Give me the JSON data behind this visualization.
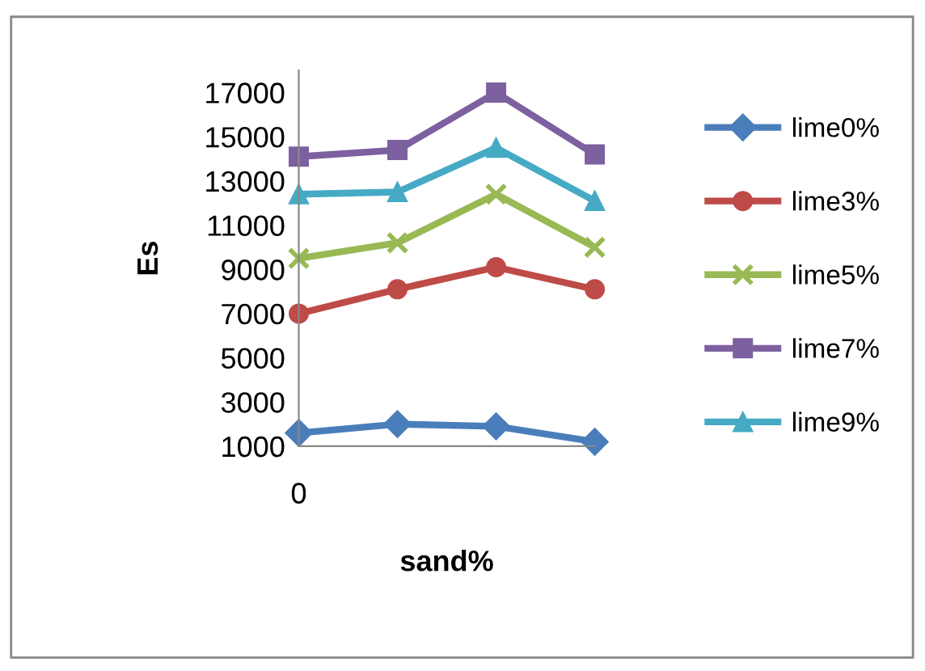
{
  "chart_data": {
    "type": "line",
    "xlabel": "sand%",
    "ylabel": "Es",
    "categories": [
      "0",
      null,
      null,
      null
    ],
    "ylim": [
      1000,
      18000
    ],
    "yticks": [
      1000,
      3000,
      5000,
      7000,
      9000,
      11000,
      13000,
      15000,
      17000
    ],
    "grid": false,
    "legend": "right",
    "line_style": "solid",
    "series": [
      {
        "name": "lime0%",
        "color": "#4a7ebb",
        "marker": "diamond",
        "values": [
          1600,
          2000,
          1900,
          1200
        ]
      },
      {
        "name": "lime3%",
        "color": "#be4b48",
        "marker": "circle",
        "values": [
          7000,
          8100,
          9100,
          8100
        ]
      },
      {
        "name": "lime5%",
        "color": "#98b954",
        "marker": "cross",
        "values": [
          9500,
          10200,
          12400,
          10000
        ]
      },
      {
        "name": "lime7%",
        "color": "#7d60a0",
        "marker": "square",
        "values": [
          14100,
          14400,
          17000,
          14200
        ]
      },
      {
        "name": "lime9%",
        "color": "#46aac5",
        "marker": "triangle",
        "values": [
          12400,
          12500,
          14500,
          12100
        ]
      }
    ]
  }
}
